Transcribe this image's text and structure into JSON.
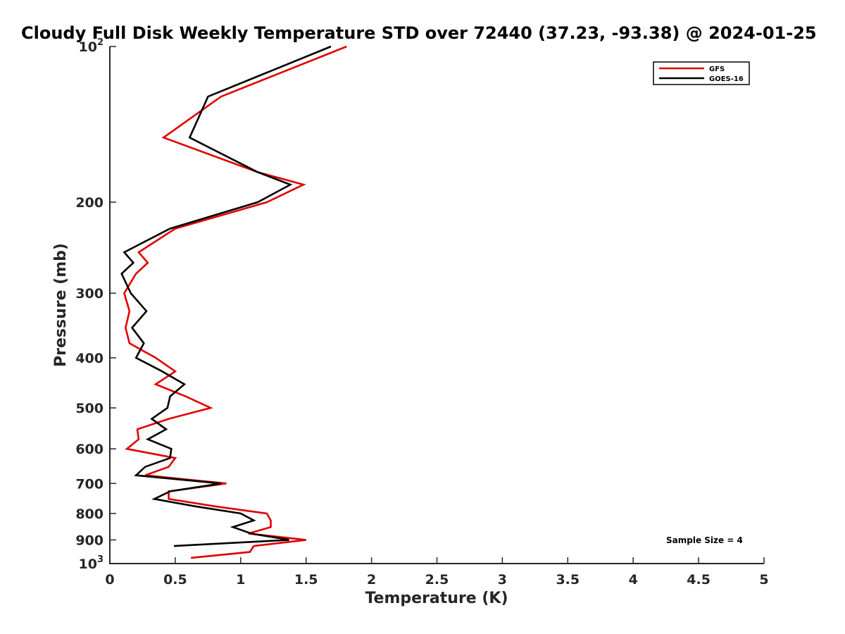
{
  "chart_data": {
    "type": "line",
    "title": "Cloudy Full Disk Weekly Temperature STD over 72440 (37.23, -93.38) @ 2024-01-25",
    "xlabel": "Temperature (K)",
    "ylabel": "Pressure (mb)",
    "xlim": [
      0,
      5
    ],
    "ylim": [
      100,
      1000
    ],
    "y_scale": "log",
    "y_reversed": true,
    "x_ticks": [
      0,
      0.5,
      1,
      1.5,
      2,
      2.5,
      3,
      3.5,
      4,
      4.5,
      5
    ],
    "x_tick_labels": [
      "0",
      "0.5",
      "1",
      "1.5",
      "2",
      "2.5",
      "3",
      "3.5",
      "4",
      "4.5",
      "5"
    ],
    "y_ticks": [
      {
        "value": 100,
        "label": "10",
        "sup": "2"
      },
      {
        "value": 200,
        "label": "200",
        "sup": ""
      },
      {
        "value": 300,
        "label": "300",
        "sup": ""
      },
      {
        "value": 400,
        "label": "400",
        "sup": ""
      },
      {
        "value": 500,
        "label": "500",
        "sup": ""
      },
      {
        "value": 600,
        "label": "600",
        "sup": ""
      },
      {
        "value": 700,
        "label": "700",
        "sup": ""
      },
      {
        "value": 800,
        "label": "800",
        "sup": ""
      },
      {
        "value": 900,
        "label": "900",
        "sup": ""
      },
      {
        "value": 1000,
        "label": "10",
        "sup": "3"
      }
    ],
    "grid": false,
    "legend_position": "top-right",
    "annotation": "Sample Size = 4",
    "series": [
      {
        "name": "GFS",
        "color": "#e00000",
        "points": [
          [
            1.81,
            100
          ],
          [
            0.85,
            125
          ],
          [
            0.41,
            150
          ],
          [
            1.13,
            175
          ],
          [
            1.48,
            185
          ],
          [
            1.2,
            200
          ],
          [
            0.5,
            225
          ],
          [
            0.22,
            250
          ],
          [
            0.29,
            262
          ],
          [
            0.2,
            275
          ],
          [
            0.11,
            300
          ],
          [
            0.15,
            325
          ],
          [
            0.12,
            350
          ],
          [
            0.15,
            375
          ],
          [
            0.35,
            400
          ],
          [
            0.5,
            425
          ],
          [
            0.35,
            450
          ],
          [
            0.58,
            475
          ],
          [
            0.77,
            500
          ],
          [
            0.45,
            525
          ],
          [
            0.21,
            550
          ],
          [
            0.22,
            575
          ],
          [
            0.13,
            600
          ],
          [
            0.5,
            625
          ],
          [
            0.45,
            650
          ],
          [
            0.27,
            675
          ],
          [
            0.89,
            700
          ],
          [
            0.45,
            725
          ],
          [
            0.45,
            750
          ],
          [
            0.8,
            775
          ],
          [
            1.2,
            800
          ],
          [
            1.23,
            825
          ],
          [
            1.23,
            850
          ],
          [
            1.06,
            875
          ],
          [
            1.5,
            900
          ],
          [
            1.1,
            925
          ],
          [
            1.07,
            950
          ],
          [
            0.62,
            975
          ]
        ]
      },
      {
        "name": "GOES-16",
        "color": "#000000",
        "points": [
          [
            1.69,
            100
          ],
          [
            0.75,
            125
          ],
          [
            0.61,
            150
          ],
          [
            1.13,
            175
          ],
          [
            1.38,
            185
          ],
          [
            1.13,
            200
          ],
          [
            0.46,
            225
          ],
          [
            0.11,
            250
          ],
          [
            0.18,
            262
          ],
          [
            0.09,
            275
          ],
          [
            0.16,
            300
          ],
          [
            0.28,
            325
          ],
          [
            0.17,
            350
          ],
          [
            0.26,
            375
          ],
          [
            0.2,
            400
          ],
          [
            0.4,
            425
          ],
          [
            0.57,
            450
          ],
          [
            0.46,
            475
          ],
          [
            0.44,
            500
          ],
          [
            0.32,
            525
          ],
          [
            0.43,
            550
          ],
          [
            0.29,
            575
          ],
          [
            0.47,
            600
          ],
          [
            0.46,
            625
          ],
          [
            0.27,
            650
          ],
          [
            0.2,
            675
          ],
          [
            0.85,
            700
          ],
          [
            0.46,
            725
          ],
          [
            0.34,
            750
          ],
          [
            0.65,
            775
          ],
          [
            1.0,
            800
          ],
          [
            1.1,
            825
          ],
          [
            0.94,
            850
          ],
          [
            1.08,
            875
          ],
          [
            1.37,
            900
          ],
          [
            0.49,
            925
          ]
        ]
      }
    ]
  }
}
